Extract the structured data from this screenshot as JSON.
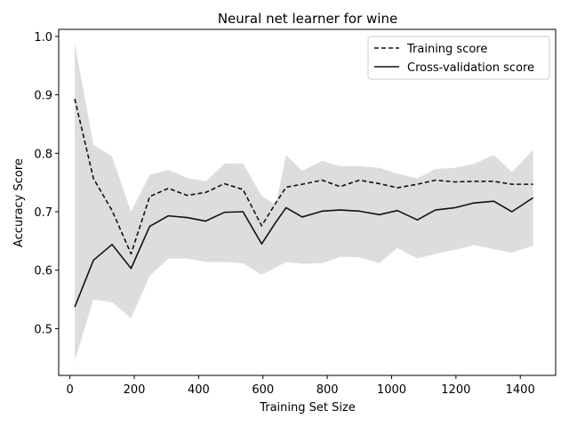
{
  "chart_data": {
    "type": "line",
    "title": "Neural net learner for wine",
    "xlabel": "Training Set Size",
    "ylabel": "Accuracy Score",
    "xlim": [
      -35,
      1510
    ],
    "ylim": [
      0.42,
      1.012
    ],
    "xticks": [
      0,
      200,
      400,
      600,
      800,
      1000,
      1200,
      1400
    ],
    "yticks": [
      0.5,
      0.6,
      0.7,
      0.8,
      0.9,
      1.0
    ],
    "ytick_labels": [
      "0.5",
      "0.6",
      "0.7",
      "0.8",
      "0.9",
      "1.0"
    ],
    "grid": false,
    "legend_position": "top-right",
    "x": [
      15,
      73,
      131,
      190,
      248,
      306,
      364,
      422,
      480,
      538,
      596,
      640,
      672,
      722,
      784,
      840,
      900,
      962,
      1018,
      1080,
      1136,
      1198,
      1256,
      1318,
      1374,
      1440
    ],
    "series": [
      {
        "name": "Training score",
        "style": "dashed",
        "color": "#111111",
        "values": [
          0.893,
          0.757,
          0.702,
          0.628,
          0.726,
          0.74,
          0.728,
          0.733,
          0.748,
          0.738,
          0.676,
          0.715,
          0.742,
          0.747,
          0.754,
          0.743,
          0.754,
          0.748,
          0.741,
          0.747,
          0.754,
          0.751,
          0.752,
          0.752,
          0.747,
          0.747
        ]
      },
      {
        "name": "Cross-validation score",
        "style": "solid",
        "color": "#111111",
        "values": [
          0.537,
          0.617,
          0.644,
          0.603,
          0.675,
          0.693,
          0.69,
          0.684,
          0.699,
          0.7,
          0.645,
          0.682,
          0.707,
          0.691,
          0.701,
          0.703,
          0.701,
          0.695,
          0.702,
          0.686,
          0.703,
          0.707,
          0.715,
          0.718,
          0.7,
          0.724
        ]
      }
    ],
    "band": {
      "color": "#dddddd",
      "upper": [
        0.988,
        0.815,
        0.794,
        0.7,
        0.763,
        0.772,
        0.758,
        0.752,
        0.782,
        0.783,
        0.727,
        0.712,
        0.797,
        0.77,
        0.787,
        0.778,
        0.778,
        0.775,
        0.765,
        0.757,
        0.773,
        0.775,
        0.782,
        0.797,
        0.768,
        0.806
      ],
      "lower": [
        0.445,
        0.55,
        0.545,
        0.518,
        0.59,
        0.62,
        0.62,
        0.614,
        0.614,
        0.612,
        0.592,
        0.605,
        0.614,
        0.611,
        0.612,
        0.623,
        0.622,
        0.612,
        0.638,
        0.62,
        0.628,
        0.635,
        0.643,
        0.636,
        0.63,
        0.642
      ]
    }
  }
}
